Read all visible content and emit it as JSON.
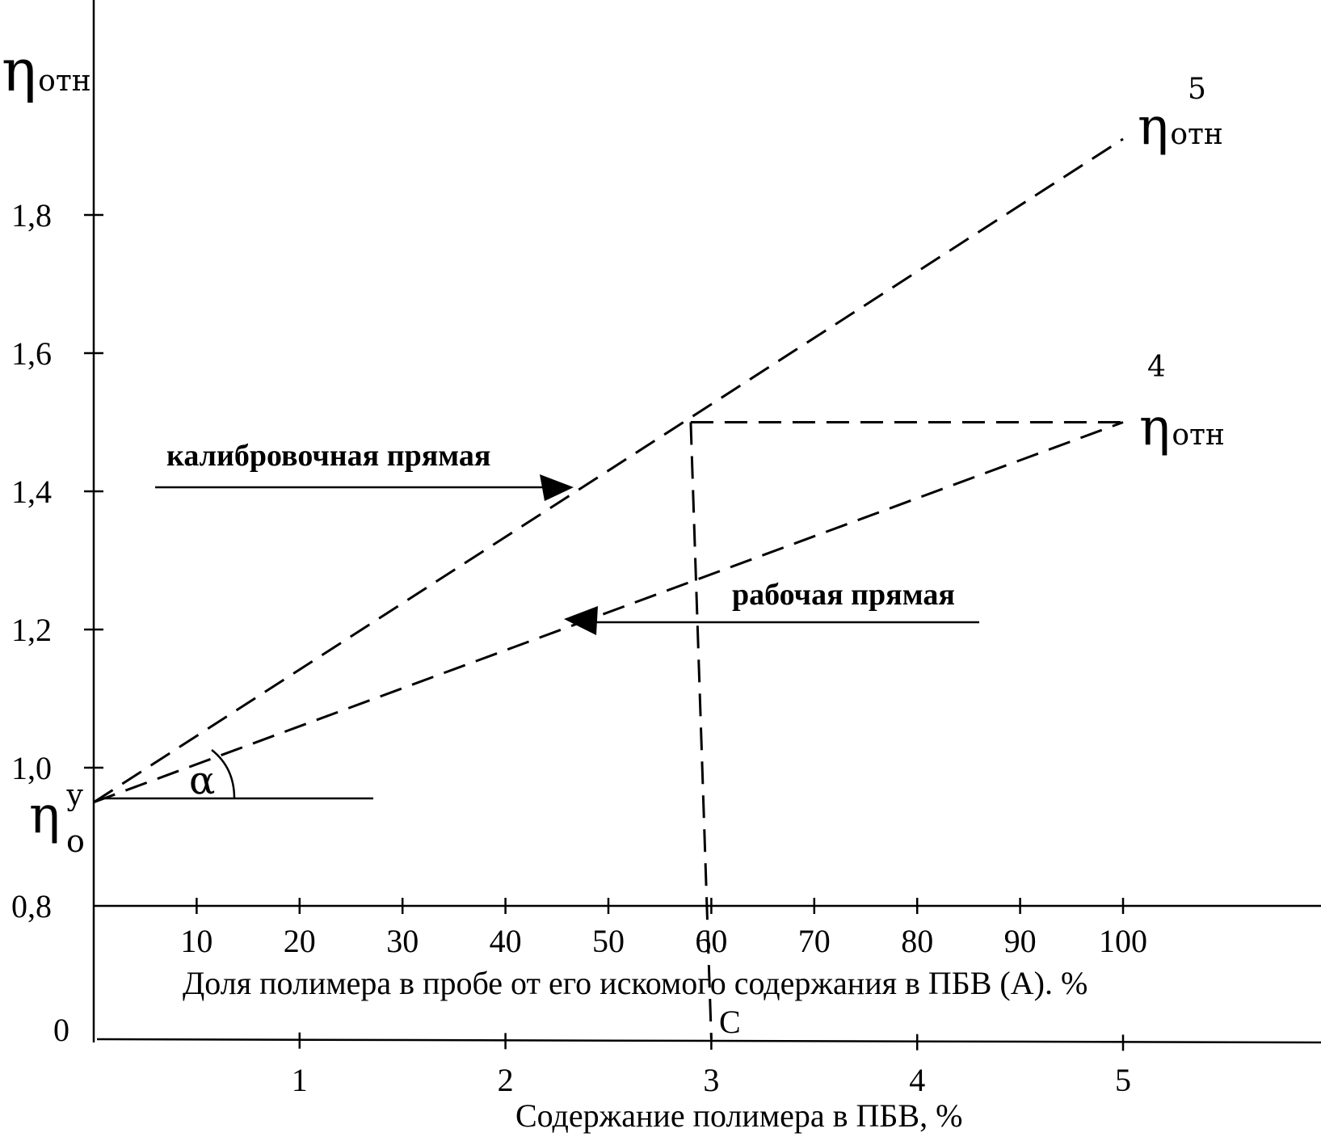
{
  "chart_data": {
    "type": "line",
    "y_axis": {
      "label_symbol": "η",
      "label_subscript": "отн",
      "ylim": [
        0.8,
        2.0
      ],
      "ticks": [
        0.8,
        1.0,
        1.2,
        1.4,
        1.6,
        1.8
      ],
      "tick_labels": [
        "0,8",
        "1,0",
        "1,2",
        "1,4",
        "1,6",
        "1,8"
      ],
      "zero_label": "0"
    },
    "x_axis_top": {
      "label": "Доля полимера в пробе от его искомого содержания в ПБВ (А). %",
      "xlim": [
        0,
        100
      ],
      "ticks": [
        10,
        20,
        30,
        40,
        50,
        60,
        70,
        80,
        90,
        100
      ],
      "tick_labels": [
        "10",
        "20",
        "30",
        "40",
        "50",
        "60",
        "70",
        "80",
        "90",
        "100"
      ]
    },
    "x_axis_bottom": {
      "label": "Содержание полимера в ПБВ, %",
      "xlim": [
        0,
        5
      ],
      "ticks": [
        1,
        2,
        3,
        4,
        5
      ],
      "tick_labels": [
        "1",
        "2",
        "3",
        "4",
        "5"
      ]
    },
    "series": [
      {
        "name": "калибровочная прямая",
        "x": [
          0,
          100
        ],
        "y": [
          0.95,
          1.91
        ],
        "end_label_symbol": "η",
        "end_label_subscript": "отн",
        "end_label_superscript": "5"
      },
      {
        "name": "рабочая прямая",
        "x": [
          0,
          100
        ],
        "y": [
          0.95,
          1.5
        ],
        "end_label_symbol": "η",
        "end_label_subscript": "отн",
        "end_label_superscript": "4"
      }
    ],
    "intersection": {
      "x": 58,
      "y": 1.5
    },
    "c_marker": {
      "label": "С",
      "x_bottom": 3
    },
    "origin_label": {
      "symbol": "η",
      "subscript": "о",
      "superscript": "у",
      "y": 0.95
    },
    "angle_label": "α"
  }
}
